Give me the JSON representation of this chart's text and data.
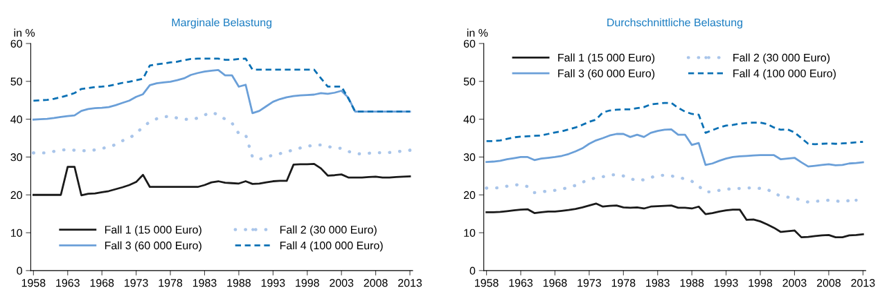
{
  "chart_data": [
    {
      "type": "line",
      "title": "Marginale Belastung",
      "ylabel": "in %",
      "xlim": [
        1957.6,
        2013.4
      ],
      "ylim": [
        0,
        60
      ],
      "xticks": [
        1958,
        1963,
        1968,
        1973,
        1978,
        1983,
        1988,
        1993,
        1998,
        2003,
        2008,
        2013
      ],
      "yticks": [
        0,
        10,
        20,
        30,
        40,
        50,
        60
      ],
      "grid": false,
      "legend": "bottom",
      "marker": "none",
      "x": [
        1958,
        1959,
        1960,
        1961,
        1962,
        1963,
        1964,
        1965,
        1966,
        1967,
        1968,
        1969,
        1970,
        1971,
        1972,
        1973,
        1974,
        1975,
        1976,
        1977,
        1978,
        1979,
        1980,
        1981,
        1982,
        1983,
        1984,
        1985,
        1986,
        1987,
        1988,
        1989,
        1990,
        1991,
        1992,
        1993,
        1994,
        1995,
        1996,
        1997,
        1998,
        1999,
        2000,
        2001,
        2002,
        2003,
        2004,
        2005,
        2006,
        2007,
        2008,
        2009,
        2010,
        2011,
        2012,
        2013
      ],
      "series": [
        {
          "name": "Fall 1 (15 000 Euro)",
          "color": "#1a1a1a",
          "line_style": "solid",
          "values": [
            20,
            20,
            20,
            20,
            20,
            27.4,
            27.4,
            19.9,
            20.3,
            20.4,
            20.7,
            21,
            21.5,
            22,
            22.6,
            23.4,
            25.3,
            22.1,
            22.1,
            22.1,
            22.1,
            22.1,
            22.1,
            22.1,
            22.1,
            22.6,
            23.3,
            23.6,
            23.2,
            23.1,
            23.0,
            23.6,
            22.9,
            23.0,
            23.3,
            23.6,
            23.7,
            23.7,
            28.0,
            28.1,
            28.1,
            28.2,
            27.0,
            25.1,
            25.2,
            25.4,
            24.6,
            24.6,
            24.6,
            24.7,
            24.8,
            24.6,
            24.6,
            24.7,
            24.8,
            24.9
          ]
        },
        {
          "name": "Fall 2 (30 000 Euro)",
          "color": "#a9c5ea",
          "line_style": "dotted",
          "values": [
            31.1,
            31.1,
            31.1,
            31.5,
            31.8,
            32.0,
            31.8,
            31.7,
            31.6,
            31.9,
            32.3,
            32.6,
            33.3,
            34.3,
            35.0,
            36.2,
            38.0,
            39.3,
            40.1,
            40.6,
            40.8,
            40.3,
            40.0,
            39.9,
            40.3,
            41.1,
            41.8,
            41.2,
            40.0,
            39.0,
            36.2,
            35.9,
            30.0,
            29.4,
            30.0,
            30.5,
            30.9,
            31.4,
            31.9,
            32.4,
            32.8,
            33.2,
            33.2,
            32.8,
            32.4,
            32.3,
            31.5,
            30.9,
            30.8,
            31.0,
            31.2,
            31.1,
            31.2,
            31.4,
            31.6,
            31.8
          ]
        },
        {
          "name": "Fall 3 (60 000 Euro)",
          "color": "#6a9fd8",
          "line_style": "solid",
          "values": [
            39.9,
            40.0,
            40.1,
            40.3,
            40.6,
            40.8,
            41.0,
            42.2,
            42.7,
            42.9,
            43.0,
            43.2,
            43.7,
            44.3,
            44.9,
            45.9,
            46.6,
            49.0,
            49.5,
            49.7,
            49.9,
            50.3,
            50.8,
            51.7,
            52.2,
            52.6,
            52.8,
            53.0,
            51.6,
            51.6,
            48.6,
            49.1,
            41.6,
            42.2,
            43.4,
            44.6,
            45.3,
            45.8,
            46.1,
            46.3,
            46.4,
            46.5,
            46.9,
            46.7,
            47.0,
            47.5,
            45.7,
            42.0,
            42.0,
            42.0,
            42.0,
            42.0,
            42.0,
            42.0,
            42.0,
            42.0
          ]
        },
        {
          "name": "Fall 4 (100 000 Euro)",
          "color": "#0a70b4",
          "line_style": "dashed",
          "values": [
            44.9,
            45.0,
            45.1,
            45.4,
            45.8,
            46.3,
            46.9,
            48.0,
            48.2,
            48.5,
            48.6,
            48.8,
            49.2,
            49.6,
            49.9,
            50.3,
            50.7,
            54.2,
            54.5,
            54.7,
            55.0,
            55.2,
            55.6,
            55.9,
            56.0,
            56.0,
            56.0,
            56.0,
            55.7,
            55.7,
            55.9,
            56.0,
            53.1,
            53.1,
            53.1,
            53.1,
            53.1,
            53.1,
            53.1,
            53.1,
            53.1,
            53.1,
            50.8,
            48.6,
            48.6,
            48.6,
            45.5,
            42.0,
            42.0,
            42.0,
            42.0,
            42.0,
            42.0,
            42.0,
            42.0,
            42.0
          ]
        }
      ]
    },
    {
      "type": "line",
      "title": "Durchschnittliche Belastung",
      "ylabel": "in %",
      "xlim": [
        1957.6,
        2013.4
      ],
      "ylim": [
        0,
        60
      ],
      "xticks": [
        1958,
        1963,
        1968,
        1973,
        1978,
        1983,
        1988,
        1993,
        1998,
        2003,
        2008,
        2013
      ],
      "yticks": [
        0,
        10,
        20,
        30,
        40,
        50,
        60
      ],
      "grid": false,
      "legend": "top",
      "marker": "none",
      "x": [
        1958,
        1959,
        1960,
        1961,
        1962,
        1963,
        1964,
        1965,
        1966,
        1967,
        1968,
        1969,
        1970,
        1971,
        1972,
        1973,
        1974,
        1975,
        1976,
        1977,
        1978,
        1979,
        1980,
        1981,
        1982,
        1983,
        1984,
        1985,
        1986,
        1987,
        1988,
        1989,
        1990,
        1991,
        1992,
        1993,
        1994,
        1995,
        1996,
        1997,
        1998,
        1999,
        2000,
        2001,
        2002,
        2003,
        2004,
        2005,
        2006,
        2007,
        2008,
        2009,
        2010,
        2011,
        2012,
        2013
      ],
      "series": [
        {
          "name": "Fall 1 (15 000 Euro)",
          "color": "#1a1a1a",
          "line_style": "solid",
          "values": [
            15.4,
            15.4,
            15.5,
            15.7,
            15.9,
            16.1,
            16.2,
            15.2,
            15.4,
            15.6,
            15.6,
            15.8,
            16.0,
            16.3,
            16.7,
            17.2,
            17.7,
            16.9,
            17.1,
            17.2,
            16.7,
            16.6,
            16.7,
            16.4,
            16.9,
            17.0,
            17.1,
            17.2,
            16.6,
            16.6,
            16.4,
            16.9,
            14.9,
            15.2,
            15.6,
            15.9,
            16.1,
            16.1,
            13.4,
            13.5,
            13.0,
            12.2,
            11.3,
            10.2,
            10.4,
            10.6,
            8.8,
            8.9,
            9.1,
            9.3,
            9.4,
            8.8,
            8.8,
            9.3,
            9.4,
            9.6
          ]
        },
        {
          "name": "Fall 2 (30 000 Euro)",
          "color": "#a9c5ea",
          "line_style": "dotted",
          "values": [
            21.8,
            21.8,
            21.9,
            22.3,
            22.6,
            22.7,
            22.2,
            20.6,
            20.8,
            21.0,
            21.2,
            21.5,
            22.0,
            22.5,
            23.3,
            24.1,
            24.5,
            24.8,
            25.2,
            25.4,
            25.0,
            24.3,
            23.8,
            24.0,
            24.6,
            25.1,
            25.2,
            25.0,
            24.7,
            24.2,
            23.6,
            22.3,
            20.8,
            20.8,
            21.2,
            21.5,
            21.6,
            21.7,
            21.8,
            21.9,
            21.7,
            21.5,
            20.4,
            19.7,
            19.4,
            19.2,
            18.5,
            18.1,
            18.3,
            18.4,
            18.6,
            18.4,
            18.2,
            18.5,
            18.6,
            null
          ]
        },
        {
          "name": "Fall 3 (60 000 Euro)",
          "color": "#6a9fd8",
          "line_style": "solid",
          "values": [
            28.7,
            28.8,
            29.0,
            29.4,
            29.7,
            30.0,
            30.0,
            29.2,
            29.6,
            29.8,
            30.0,
            30.3,
            30.8,
            31.5,
            32.3,
            33.5,
            34.4,
            35.0,
            35.7,
            36.1,
            36.1,
            35.3,
            35.9,
            35.3,
            36.4,
            36.9,
            37.2,
            37.3,
            35.9,
            35.9,
            33.2,
            33.7,
            27.9,
            28.3,
            29.0,
            29.6,
            30.0,
            30.2,
            30.3,
            30.4,
            30.5,
            30.5,
            30.5,
            29.4,
            29.6,
            29.8,
            28.6,
            27.5,
            27.7,
            27.9,
            28.1,
            27.8,
            27.9,
            28.3,
            28.4,
            28.6
          ]
        },
        {
          "name": "Fall 4 (100 000 Euro)",
          "color": "#0a70b4",
          "line_style": "dashed",
          "values": [
            34.2,
            34.2,
            34.4,
            34.8,
            35.2,
            35.4,
            35.5,
            35.6,
            35.7,
            36.1,
            36.5,
            36.8,
            37.3,
            37.8,
            38.5,
            39.3,
            39.9,
            41.8,
            42.3,
            42.5,
            42.6,
            42.6,
            42.9,
            43.2,
            43.9,
            44.1,
            44.3,
            44.3,
            43.0,
            42.0,
            41.4,
            41.2,
            36.4,
            37.1,
            37.8,
            38.3,
            38.5,
            38.8,
            39.0,
            39.1,
            39.1,
            38.7,
            37.8,
            37.2,
            37.3,
            36.5,
            35.0,
            33.5,
            33.4,
            33.5,
            33.6,
            33.5,
            33.6,
            33.7,
            33.9,
            34.0
          ]
        }
      ]
    }
  ]
}
